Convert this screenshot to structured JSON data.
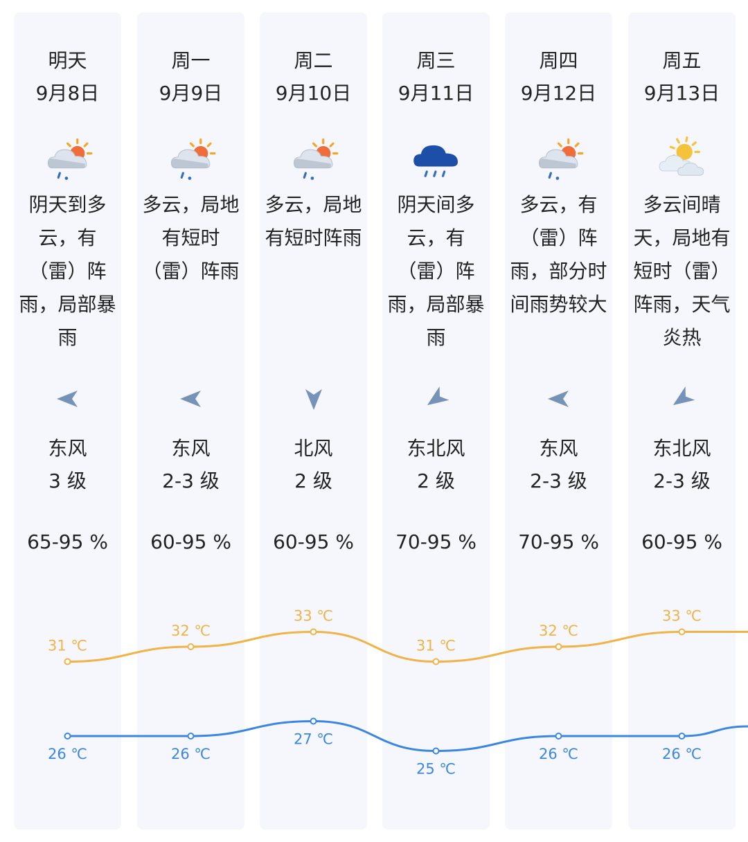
{
  "days": [
    {
      "weekday": "明天",
      "date": "9月8日",
      "icon": "cloudy-sun-rain-icon",
      "desc": "阴天到多\n云，有\n（雷）阵\n雨，局部暴\n雨",
      "wind_dir_icon": "wind-arrow-west-icon",
      "wind_dir": "东风",
      "wind_level": "3 级",
      "humidity": "65-95 %"
    },
    {
      "weekday": "周一",
      "date": "9月9日",
      "icon": "cloudy-sun-rain-icon",
      "desc": "多云，局地\n有短时\n（雷）阵雨",
      "wind_dir_icon": "wind-arrow-west-icon",
      "wind_dir": "东风",
      "wind_level": "2-3 级",
      "humidity": "60-95 %"
    },
    {
      "weekday": "周二",
      "date": "9月10日",
      "icon": "cloudy-sun-rain-icon",
      "desc": "多云，局地\n有短时阵雨",
      "wind_dir_icon": "wind-arrow-south-icon",
      "wind_dir": "北风",
      "wind_level": "2 级",
      "humidity": "60-95 %"
    },
    {
      "weekday": "周三",
      "date": "9月11日",
      "icon": "dark-cloud-rain-icon",
      "desc": "阴天间多\n云，有\n（雷）阵\n雨，局部暴\n雨",
      "wind_dir_icon": "wind-arrow-southwest-icon",
      "wind_dir": "东北风",
      "wind_level": "2 级",
      "humidity": "70-95 %"
    },
    {
      "weekday": "周四",
      "date": "9月12日",
      "icon": "cloudy-sun-rain-icon",
      "desc": "多云，有\n（雷）阵\n雨，部分时\n间雨势较大",
      "wind_dir_icon": "wind-arrow-west-icon",
      "wind_dir": "东风",
      "wind_level": "2-3 级",
      "humidity": "70-95 %"
    },
    {
      "weekday": "周五",
      "date": "9月13日",
      "icon": "sun-cloud-icon",
      "desc": "多云间晴\n天，局地有\n短时（雷）\n阵雨，天气\n炎热",
      "wind_dir_icon": "wind-arrow-southwest-icon",
      "wind_dir": "东北风",
      "wind_level": "2-3 级",
      "humidity": "60-95 %"
    }
  ],
  "chart_data": {
    "type": "line",
    "categories": [
      "明天",
      "周一",
      "周二",
      "周三",
      "周四",
      "周五"
    ],
    "unit": "℃",
    "series": [
      {
        "key": "high",
        "values": [
          31,
          32,
          33,
          31,
          32,
          33
        ],
        "color": "#f0b347"
      },
      {
        "key": "low",
        "values": [
          26,
          26,
          27,
          25,
          26,
          26
        ],
        "color": "#3a86e0"
      }
    ]
  }
}
